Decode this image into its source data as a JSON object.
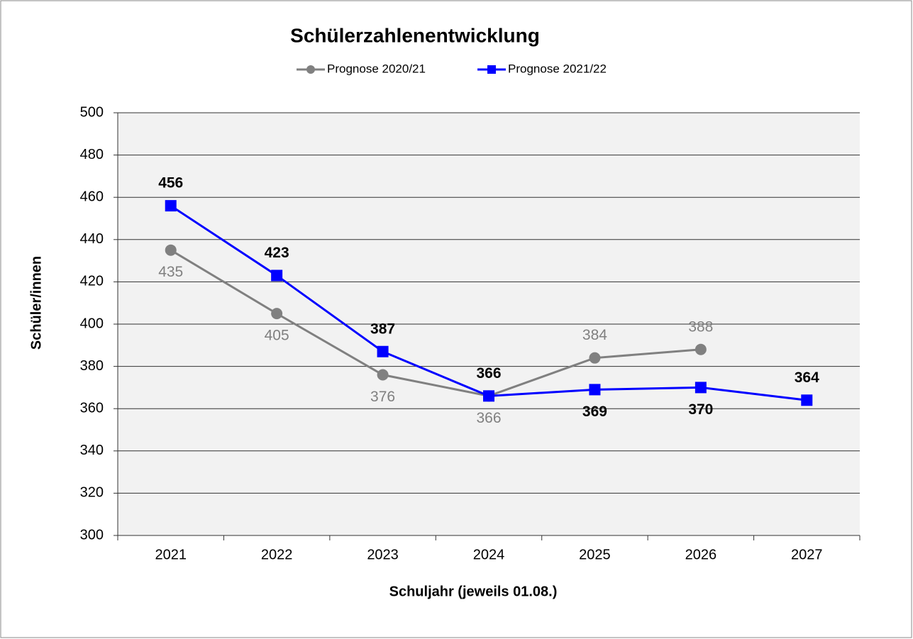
{
  "chart_data": {
    "type": "line",
    "title": "Schülerzahlenentwicklung",
    "x_label": "Schuljahr (jeweils 01.08.)",
    "y_label": "Schüler/innen",
    "categories": [
      "2021",
      "2022",
      "2023",
      "2024",
      "2025",
      "2026",
      "2027"
    ],
    "series": [
      {
        "name": "Prognose 2020/21",
        "color": "#808080",
        "marker": "circle",
        "values": [
          435,
          405,
          376,
          366,
          384,
          388,
          null
        ]
      },
      {
        "name": "Prognose 2021/22",
        "color": "#0000ff",
        "marker": "square",
        "values": [
          456,
          423,
          387,
          366,
          369,
          370,
          364
        ]
      }
    ],
    "ylim": [
      300,
      500
    ],
    "yticks": [
      300,
      320,
      340,
      360,
      380,
      400,
      420,
      440,
      460,
      480,
      500
    ],
    "grid": true,
    "legend": "top"
  }
}
